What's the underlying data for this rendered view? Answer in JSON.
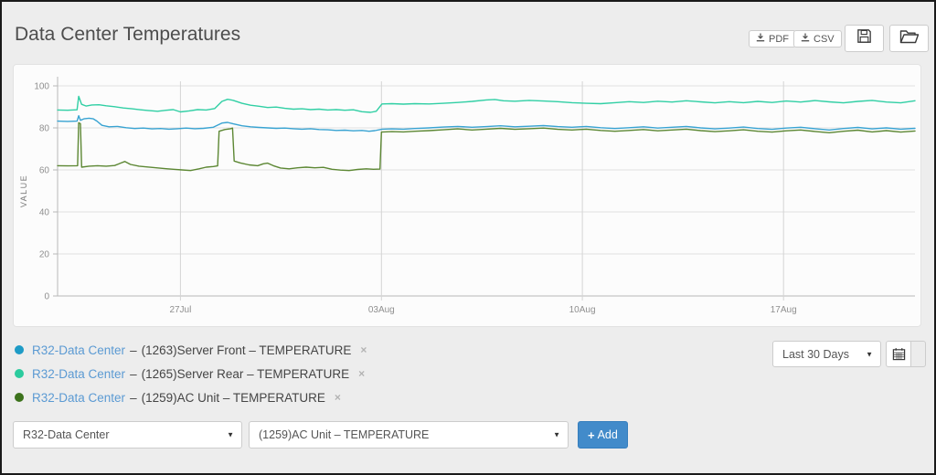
{
  "window": {
    "title": "Data Center Temperatures"
  },
  "toolbar": {
    "pdf_label": "PDF",
    "csv_label": "CSV"
  },
  "chart_data": {
    "type": "line",
    "title": "",
    "xlabel": "",
    "ylabel": "VALUE",
    "ylim": [
      0,
      100
    ],
    "y_ticks": [
      0,
      20,
      40,
      60,
      80,
      100
    ],
    "xlim_days": [
      0,
      30
    ],
    "x_ticks": [
      {
        "label": "27Jul",
        "day": 4.3
      },
      {
        "label": "03Aug",
        "day": 11.33
      },
      {
        "label": "10Aug",
        "day": 18.36
      },
      {
        "label": "17Aug",
        "day": 25.4
      }
    ],
    "grid": true,
    "legend_position": "bottom-left",
    "series": [
      {
        "name": "R32-Data Center – (1263)Server Front – TEMPERATURE",
        "color": "#38a3d2",
        "points": [
          [
            0,
            83.2
          ],
          [
            0.35,
            83.1
          ],
          [
            0.68,
            83.2
          ],
          [
            0.74,
            85.8
          ],
          [
            0.8,
            83.6
          ],
          [
            0.92,
            84.3
          ],
          [
            1.1,
            84.6
          ],
          [
            1.25,
            84.3
          ],
          [
            1.38,
            83.2
          ],
          [
            1.55,
            81.2
          ],
          [
            1.8,
            80.5
          ],
          [
            2.1,
            80.7
          ],
          [
            2.4,
            80.1
          ],
          [
            2.7,
            79.7
          ],
          [
            3,
            79.9
          ],
          [
            3.3,
            79.5
          ],
          [
            3.6,
            79.7
          ],
          [
            3.9,
            79.4
          ],
          [
            4.2,
            79.6
          ],
          [
            4.5,
            79.9
          ],
          [
            4.8,
            79.6
          ],
          [
            5.1,
            79.8
          ],
          [
            5.45,
            80.3
          ],
          [
            5.75,
            82.3
          ],
          [
            5.95,
            82.6
          ],
          [
            6.15,
            81.9
          ],
          [
            6.45,
            81
          ],
          [
            6.75,
            80.5
          ],
          [
            7.05,
            80.2
          ],
          [
            7.35,
            80
          ],
          [
            7.65,
            79.8
          ],
          [
            7.95,
            79.9
          ],
          [
            8.25,
            79.6
          ],
          [
            8.55,
            79.4
          ],
          [
            8.85,
            79.6
          ],
          [
            9.15,
            79.2
          ],
          [
            9.45,
            79.1
          ],
          [
            9.75,
            78.8
          ],
          [
            10.05,
            78.9
          ],
          [
            10.35,
            78.6
          ],
          [
            10.65,
            78.8
          ],
          [
            10.9,
            78.4
          ],
          [
            11.1,
            78.7
          ],
          [
            11.35,
            79.4
          ],
          [
            11.7,
            79.5
          ],
          [
            12.1,
            79.4
          ],
          [
            12.5,
            79.7
          ],
          [
            13,
            80
          ],
          [
            13.5,
            80.4
          ],
          [
            14,
            80.7
          ],
          [
            14.5,
            80.3
          ],
          [
            15,
            80.6
          ],
          [
            15.5,
            81
          ],
          [
            16,
            80.5
          ],
          [
            16.5,
            80.8
          ],
          [
            17,
            81.1
          ],
          [
            17.5,
            80.6
          ],
          [
            18,
            80.3
          ],
          [
            18.5,
            80.7
          ],
          [
            19,
            80.1
          ],
          [
            19.5,
            79.7
          ],
          [
            20,
            80.1
          ],
          [
            20.5,
            80.5
          ],
          [
            21,
            79.9
          ],
          [
            21.5,
            80.3
          ],
          [
            22,
            80.7
          ],
          [
            22.5,
            80
          ],
          [
            23,
            79.5
          ],
          [
            23.5,
            79.9
          ],
          [
            24,
            80.4
          ],
          [
            24.5,
            79.7
          ],
          [
            25,
            79.3
          ],
          [
            25.5,
            79.9
          ],
          [
            26,
            80.3
          ],
          [
            26.5,
            79.6
          ],
          [
            27,
            79
          ],
          [
            27.5,
            79.7
          ],
          [
            28,
            80.2
          ],
          [
            28.5,
            79.5
          ],
          [
            29,
            80
          ],
          [
            29.5,
            79.4
          ],
          [
            30,
            79.8
          ]
        ]
      },
      {
        "name": "R32-Data Center – (1265)Server Rear – TEMPERATURE",
        "color": "#30cfa4",
        "points": [
          [
            0,
            88.5
          ],
          [
            0.35,
            88.4
          ],
          [
            0.68,
            88.6
          ],
          [
            0.74,
            95
          ],
          [
            0.84,
            91.2
          ],
          [
            1,
            90.4
          ],
          [
            1.2,
            90.9
          ],
          [
            1.45,
            91
          ],
          [
            1.7,
            90.5
          ],
          [
            2,
            90.1
          ],
          [
            2.3,
            89.5
          ],
          [
            2.6,
            89.1
          ],
          [
            2.9,
            88.6
          ],
          [
            3.2,
            88.2
          ],
          [
            3.5,
            87.9
          ],
          [
            3.8,
            88.4
          ],
          [
            4.05,
            88.7
          ],
          [
            4.3,
            87.6
          ],
          [
            4.6,
            88.1
          ],
          [
            4.9,
            88.7
          ],
          [
            5.2,
            88.5
          ],
          [
            5.5,
            89.2
          ],
          [
            5.75,
            92.6
          ],
          [
            5.95,
            93.6
          ],
          [
            6.15,
            93.1
          ],
          [
            6.45,
            91.7
          ],
          [
            6.75,
            90.8
          ],
          [
            7.05,
            90.3
          ],
          [
            7.35,
            89.7
          ],
          [
            7.65,
            89.9
          ],
          [
            7.95,
            89.3
          ],
          [
            8.25,
            88.9
          ],
          [
            8.55,
            89.1
          ],
          [
            8.85,
            88.7
          ],
          [
            9.15,
            88.9
          ],
          [
            9.45,
            88.5
          ],
          [
            9.75,
            88.7
          ],
          [
            10.05,
            88.4
          ],
          [
            10.35,
            88.6
          ],
          [
            10.65,
            87.7
          ],
          [
            10.95,
            87.4
          ],
          [
            11.15,
            87.9
          ],
          [
            11.35,
            91.4
          ],
          [
            11.7,
            91.5
          ],
          [
            12.1,
            91.3
          ],
          [
            12.5,
            91.5
          ],
          [
            13,
            91.4
          ],
          [
            13.5,
            91.7
          ],
          [
            14,
            92.1
          ],
          [
            14.5,
            92.6
          ],
          [
            15,
            93.3
          ],
          [
            15.3,
            93.5
          ],
          [
            15.6,
            92.9
          ],
          [
            16,
            92.7
          ],
          [
            16.5,
            93.1
          ],
          [
            17,
            92.8
          ],
          [
            17.5,
            92.5
          ],
          [
            18,
            92
          ],
          [
            18.5,
            91.7
          ],
          [
            19,
            91.5
          ],
          [
            19.5,
            92
          ],
          [
            20,
            92.5
          ],
          [
            20.5,
            92.1
          ],
          [
            21,
            92.7
          ],
          [
            21.5,
            92.3
          ],
          [
            22,
            92.9
          ],
          [
            22.5,
            92.4
          ],
          [
            23,
            91.9
          ],
          [
            23.5,
            92.5
          ],
          [
            24,
            92
          ],
          [
            24.5,
            92.6
          ],
          [
            25,
            92.1
          ],
          [
            25.5,
            92.8
          ],
          [
            26,
            92.3
          ],
          [
            26.5,
            93
          ],
          [
            27,
            92.4
          ],
          [
            27.5,
            91.9
          ],
          [
            28,
            92.6
          ],
          [
            28.5,
            93.1
          ],
          [
            29,
            92.3
          ],
          [
            29.5,
            91.9
          ],
          [
            30,
            92.9
          ]
        ]
      },
      {
        "name": "R32-Data Center – (1259)AC Unit – TEMPERATURE",
        "color": "#5c8733",
        "points": [
          [
            0,
            62
          ],
          [
            0.35,
            61.9
          ],
          [
            0.7,
            62
          ],
          [
            0.74,
            82.5
          ],
          [
            0.8,
            82
          ],
          [
            0.84,
            61.3
          ],
          [
            1.1,
            61.8
          ],
          [
            1.4,
            62
          ],
          [
            1.7,
            61.8
          ],
          [
            2,
            62.1
          ],
          [
            2.2,
            63.2
          ],
          [
            2.35,
            64
          ],
          [
            2.55,
            62.6
          ],
          [
            2.85,
            61.8
          ],
          [
            3.15,
            61.4
          ],
          [
            3.45,
            61
          ],
          [
            3.75,
            60.6
          ],
          [
            4.05,
            60.3
          ],
          [
            4.35,
            60
          ],
          [
            4.65,
            59.7
          ],
          [
            4.95,
            60.5
          ],
          [
            5.2,
            61.3
          ],
          [
            5.45,
            61.6
          ],
          [
            5.6,
            61.9
          ],
          [
            5.65,
            78.4
          ],
          [
            5.85,
            79.2
          ],
          [
            6.05,
            79.6
          ],
          [
            6.12,
            79.9
          ],
          [
            6.18,
            64.2
          ],
          [
            6.4,
            63.3
          ],
          [
            6.7,
            62.4
          ],
          [
            7,
            62
          ],
          [
            7.2,
            62.9
          ],
          [
            7.35,
            63.2
          ],
          [
            7.55,
            62
          ],
          [
            7.8,
            60.9
          ],
          [
            8.1,
            60.5
          ],
          [
            8.4,
            61
          ],
          [
            8.7,
            61.3
          ],
          [
            9,
            61
          ],
          [
            9.3,
            61.2
          ],
          [
            9.6,
            60.3
          ],
          [
            9.9,
            59.9
          ],
          [
            10.2,
            59.7
          ],
          [
            10.5,
            60.2
          ],
          [
            10.8,
            60.5
          ],
          [
            11.05,
            60.3
          ],
          [
            11.28,
            60.4
          ],
          [
            11.33,
            78
          ],
          [
            11.7,
            78.2
          ],
          [
            12.1,
            78.1
          ],
          [
            12.5,
            78.4
          ],
          [
            13,
            78.7
          ],
          [
            13.5,
            79.1
          ],
          [
            14,
            79.5
          ],
          [
            14.5,
            79
          ],
          [
            15,
            79.4
          ],
          [
            15.5,
            79.8
          ],
          [
            16,
            79.3
          ],
          [
            16.5,
            79.6
          ],
          [
            17,
            79.9
          ],
          [
            17.5,
            79.3
          ],
          [
            18,
            79
          ],
          [
            18.5,
            79.4
          ],
          [
            19,
            78.8
          ],
          [
            19.5,
            78.4
          ],
          [
            20,
            78.8
          ],
          [
            20.5,
            79.2
          ],
          [
            21,
            78.6
          ],
          [
            21.5,
            79
          ],
          [
            22,
            79.4
          ],
          [
            22.5,
            78.7
          ],
          [
            23,
            78.2
          ],
          [
            23.5,
            78.6
          ],
          [
            24,
            79.1
          ],
          [
            24.5,
            78.4
          ],
          [
            25,
            78
          ],
          [
            25.5,
            78.6
          ],
          [
            26,
            79
          ],
          [
            26.5,
            78.3
          ],
          [
            27,
            77.7
          ],
          [
            27.5,
            78.4
          ],
          [
            28,
            78.9
          ],
          [
            28.5,
            78.1
          ],
          [
            29,
            78.7
          ],
          [
            29.5,
            78
          ],
          [
            30,
            78.5
          ]
        ]
      }
    ]
  },
  "legend": {
    "remove_glyph": "×",
    "sep": "–",
    "items": [
      {
        "device": "R32-Data Center",
        "metric": "(1263)Server Front – TEMPERATURE",
        "dot_color": "#1e9bc6"
      },
      {
        "device": "R32-Data Center",
        "metric": "(1265)Server Rear – TEMPERATURE",
        "dot_color": "#2bcb9e"
      },
      {
        "device": "R32-Data Center",
        "metric": "(1259)AC Unit – TEMPERATURE",
        "dot_color": "#3c721c"
      }
    ]
  },
  "controls": {
    "caret_glyph": "▼",
    "range_select": {
      "value": "Last 30 Days"
    },
    "device_select": {
      "value": "R32-Data Center"
    },
    "metric_select": {
      "value": "(1259)AC Unit – TEMPERATURE"
    },
    "add_button": {
      "plus_glyph": "+",
      "label": "Add"
    }
  },
  "colors": {
    "accent_blue": "#428bca",
    "link_blue": "#5b9ad3",
    "page_bg": "#ededed",
    "panel_bg": "#fcfcfc"
  }
}
